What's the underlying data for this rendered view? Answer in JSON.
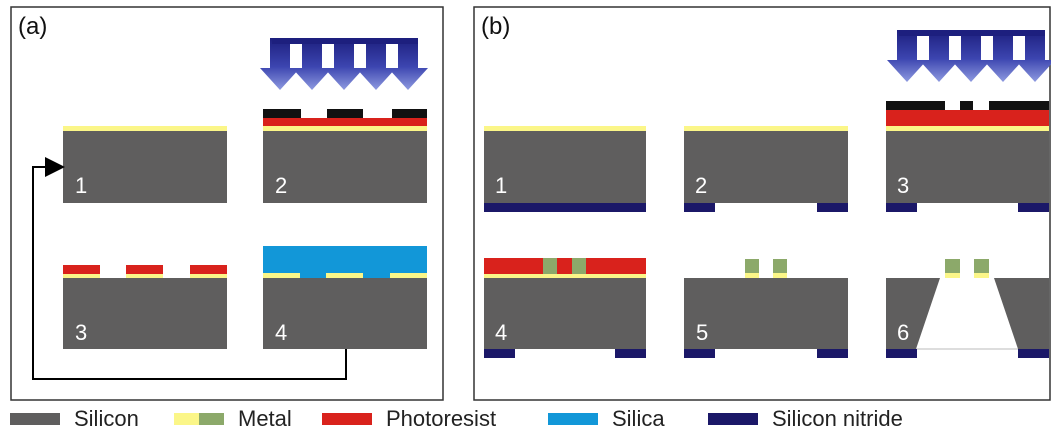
{
  "panels": [
    {
      "label": "(a)",
      "steps": [
        "1",
        "2",
        "3",
        "4"
      ]
    },
    {
      "label": "(b)",
      "steps": [
        "1",
        "2",
        "3",
        "4",
        "5",
        "6"
      ]
    }
  ],
  "legend": [
    {
      "name": "Silicon",
      "color": "#5f5e5e"
    },
    {
      "name": "Metal",
      "colors": [
        "#fbf688",
        "#8ca96a"
      ]
    },
    {
      "name": "Photoresist",
      "color": "#d9221c"
    },
    {
      "name": "Silica",
      "color": "#1297d8"
    },
    {
      "name": "Silicon nitride",
      "color": "#1b1868"
    }
  ],
  "colors": {
    "silicon": "#5f5e5e",
    "metal": "#fbf688",
    "metal_green": "#8ca96a",
    "photoresist": "#d9221c",
    "silica": "#1297d8",
    "nitride": "#1b1868",
    "mask": "#111111",
    "uv_arrow": "#2e3393"
  },
  "icons": [
    "uv-exposure-arrows-icon",
    "cycle-return-arrow-icon"
  ]
}
